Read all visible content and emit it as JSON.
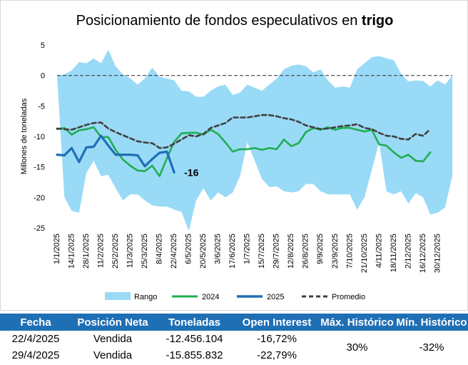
{
  "chart_data": {
    "type": "area",
    "title": "Posicionamiento de fondos especulativos en ",
    "title_bold": "trigo",
    "ylabel": "Millones de toneladas",
    "xlabel": "",
    "ylim": [
      -25,
      5
    ],
    "yticks": [
      5,
      0,
      -5,
      -10,
      -15,
      -20,
      -25
    ],
    "grid": false,
    "legend_position": "bottom",
    "x_tick_labels": [
      "1/1/2025",
      "14/1/2025",
      "28/1/2025",
      "11/2/2025",
      "25/2/2025",
      "11/3/2025",
      "25/3/2025",
      "8/4/2025",
      "22/4/2025",
      "6/5/2025",
      "20/5/2025",
      "3/6/2025",
      "17/6/2025",
      "1/7/2025",
      "15/7/2025",
      "29/7/2025",
      "12/8/2025",
      "26/8/2025",
      "9/9/2025",
      "23/9/2025",
      "7/10/2025",
      "21/10/2025",
      "4/11/2025",
      "18/11/2025",
      "2/12/2025",
      "16/12/2025",
      "30/12/2025"
    ],
    "annotation": "-16",
    "series": [
      {
        "name": "Rango",
        "kind": "band",
        "color": "#99daf7",
        "upper": [
          0,
          0.2,
          0.8,
          2.2,
          2.0,
          2.8,
          2.0,
          4.2,
          1.5,
          0.2,
          -0.5,
          -1.5,
          -0.5,
          1.3,
          -0.2,
          -0.5,
          -0.8,
          -2.5,
          -2.6,
          -3.5,
          -3.5,
          -2.5,
          -1.8,
          -1.5,
          -3.2,
          -2.8,
          -1.5,
          -2.0,
          -2.5,
          -1.5,
          -0.5,
          1.0,
          1.6,
          1.8,
          1.5,
          0.5,
          1.0,
          -0.8,
          -2.0,
          -1.8,
          -2.0,
          1.0,
          2.0,
          3.0,
          3.2,
          2.8,
          2.5,
          0.3,
          -1.0,
          -0.8,
          -0.9,
          -1.8,
          -0.8,
          -1.5,
          0
        ],
        "lower": [
          0,
          -20.0,
          -22.2,
          -22.5,
          -16.0,
          -14.0,
          -16.5,
          -16.3,
          -18.5,
          -20.5,
          -19.5,
          -19.5,
          -20.5,
          -21.3,
          -21.5,
          -21.5,
          -22.0,
          -22.4,
          -25.5,
          -20.5,
          -18.5,
          -20.5,
          -19.2,
          -20.0,
          -19.2,
          -16.5,
          -11.0,
          -14.0,
          -17.0,
          -18.3,
          -18.2,
          -19.0,
          -19.2,
          -19.0,
          -17.8,
          -17.8,
          -19.0,
          -19.5,
          -19.5,
          -19.5,
          -19.5,
          -22.0,
          -20.0,
          -15.5,
          -11.0,
          -19.0,
          -19.5,
          -19.0,
          -21.0,
          -19.3,
          -20.0,
          -22.8,
          -22.5,
          -21.7,
          -16.5
        ]
      },
      {
        "name": "2024",
        "kind": "line",
        "color": "#1fae50",
        "values": [
          -8.8,
          -8.6,
          -9.7,
          -9.0,
          -8.8,
          -8.5,
          -10.1,
          -10.1,
          -12.2,
          -13.8,
          -14.8,
          -15.6,
          -15.7,
          -14.8,
          -16.5,
          -13.6,
          -10.9,
          -9.5,
          -9.4,
          -9.4,
          -9.7,
          -8.9,
          -9.6,
          -11.0,
          -12.5,
          -12.1,
          -12.1,
          -11.9,
          -12.2,
          -11.9,
          -12.1,
          -10.5,
          -11.6,
          -11.1,
          -9.3,
          -8.6,
          -8.9,
          -8.5,
          -8.9,
          -8.6,
          -8.6,
          -8.9,
          -9.2,
          -8.9,
          -11.3,
          -11.5,
          -12.6,
          -13.5,
          -13.0,
          -14.0,
          -14.1,
          -12.6
        ]
      },
      {
        "name": "2025",
        "kind": "line",
        "color": "#1f6fb5",
        "values": [
          -13.0,
          -13.1,
          -11.9,
          -14.2,
          -11.8,
          -11.7,
          -9.9,
          -11.5,
          -13.0,
          -13.0,
          -13.0,
          -13.1,
          -14.9,
          -13.7,
          -12.7,
          -12.5,
          -15.9
        ]
      },
      {
        "name": "Promedio",
        "kind": "line",
        "style": "dashed",
        "color": "#404040",
        "values": [
          -8.7,
          -8.8,
          -8.9,
          -8.5,
          -8.1,
          -7.8,
          -7.7,
          -8.7,
          -9.3,
          -9.8,
          -10.3,
          -10.8,
          -11.0,
          -11.1,
          -11.9,
          -11.8,
          -11.2,
          -10.5,
          -9.8,
          -10.0,
          -9.6,
          -8.6,
          -8.2,
          -7.8,
          -6.9,
          -6.9,
          -6.9,
          -6.7,
          -6.5,
          -6.5,
          -6.7,
          -7.0,
          -7.2,
          -7.6,
          -8.2,
          -8.5,
          -8.8,
          -8.7,
          -8.5,
          -8.3,
          -8.2,
          -8.0,
          -8.6,
          -8.8,
          -9.4,
          -9.9,
          -10.0,
          -10.4,
          -10.5,
          -9.6,
          -9.9,
          -8.8
        ]
      }
    ]
  },
  "table": {
    "headers": [
      "Fecha",
      "Posición Neta",
      "Toneladas",
      "Open Interest",
      "Máx. Histórico",
      "Mín. Histórico"
    ],
    "rows": [
      [
        "22/4/2025",
        "Vendida",
        "-12.456.104",
        "-16,72%"
      ],
      [
        "29/4/2025",
        "Vendida",
        "-15.855.832",
        "-22,79%"
      ]
    ],
    "max_historico": "30%",
    "min_historico": "-32%"
  }
}
